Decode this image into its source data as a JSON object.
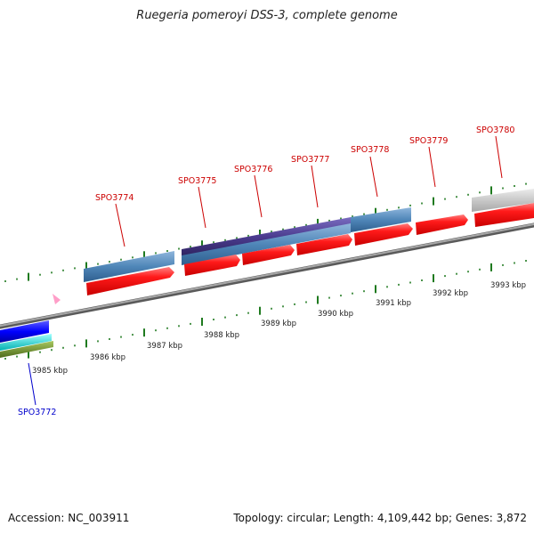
{
  "title": "Ruegeria pomeroyi DSS-3, complete genome",
  "footer": {
    "accession": "Accession: NC_003911",
    "summary": "Topology: circular; Length: 4,109,442 bp; Genes: 3,872"
  },
  "scale_labels": [
    "3985 kbp",
    "3986 kbp",
    "3987 kbp",
    "3988 kbp",
    "3989 kbp",
    "3990 kbp",
    "3991 kbp",
    "3992 kbp",
    "3993 kbp"
  ],
  "genes": [
    {
      "name": "SPO3772",
      "color": "#0000cc"
    },
    {
      "name": "SPO3774",
      "color": "#cc0000"
    },
    {
      "name": "SPO3775",
      "color": "#cc0000"
    },
    {
      "name": "SPO3776",
      "color": "#cc0000"
    },
    {
      "name": "SPO3777",
      "color": "#cc0000"
    },
    {
      "name": "SPO3778",
      "color": "#cc0000"
    },
    {
      "name": "SPO3779",
      "color": "#cc0000"
    },
    {
      "name": "SPO3780",
      "color": "#cc0000"
    }
  ],
  "colors": {
    "cds": "#ff0000",
    "steelblue": "#4f86b8",
    "purple": "#4b3c8f",
    "grey": "#c8c8c8",
    "tick": "#1f7a1f",
    "backbone": "#808080",
    "blue": "#0000ff",
    "cyan": "#00c8c8",
    "olive": "#6b8e23"
  }
}
